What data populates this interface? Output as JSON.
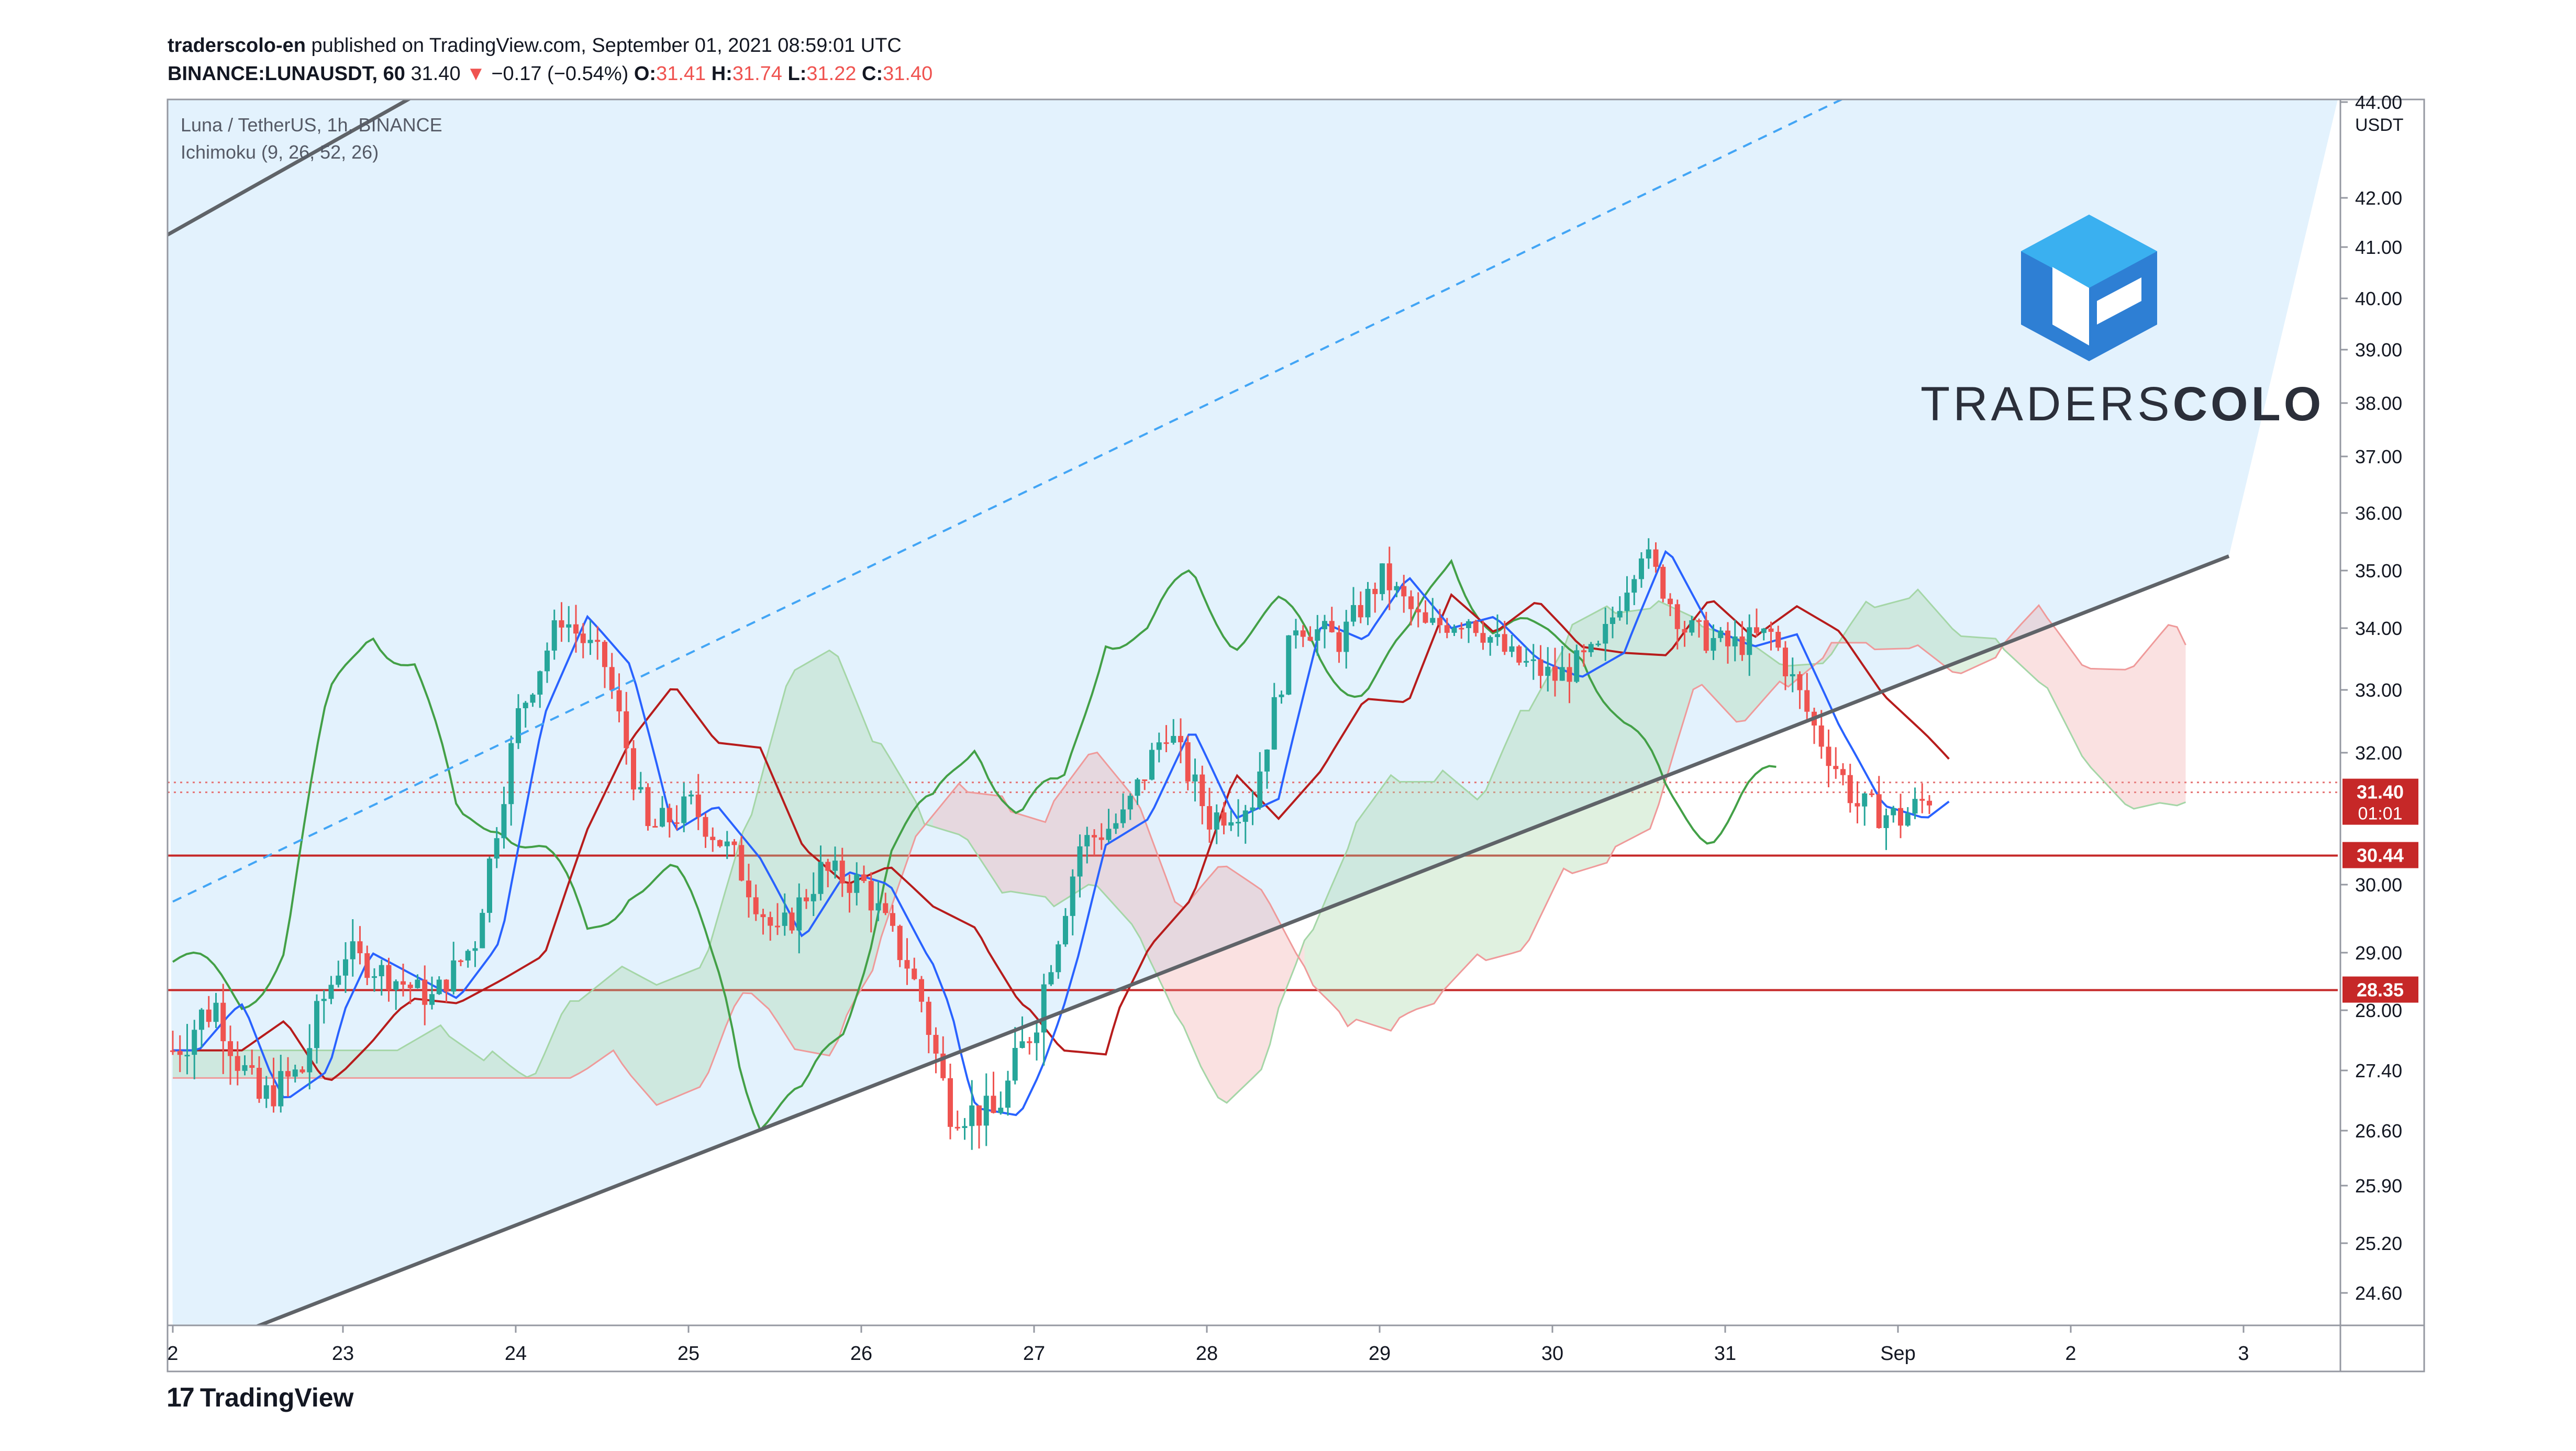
{
  "header": {
    "author": "traderscolo-en",
    "published_text": "published on TradingView.com, September 01, 2021 08:59:01 UTC",
    "symbol": "BINANCE:LUNAUSDT, 60",
    "last": "31.40",
    "change_arrow": "▼",
    "change": "−0.17 (−0.54%)",
    "o_label": "O:",
    "o_value": "31.41",
    "h_label": "H:",
    "h_value": "31.74",
    "l_label": "L:",
    "l_value": "31.22",
    "c_label": "C:",
    "c_value": "31.40"
  },
  "legend": {
    "series_title": "Luna / TetherUS, 1h, BINANCE",
    "indicator": "Ichimoku (9, 26, 52, 26)"
  },
  "brand": {
    "text_light": "TRADERS",
    "text_bold": "COLO"
  },
  "footer": {
    "logo_text": "TradingView",
    "logo_mark": "17"
  },
  "chart_data": {
    "type": "candlestick",
    "currency_label": "USDT",
    "x_ticks": [
      "2",
      "23",
      "24",
      "25",
      "26",
      "27",
      "28",
      "29",
      "30",
      "31",
      "Sep",
      "2",
      "3"
    ],
    "y_ticks": [
      "44.00",
      "42.00",
      "41.00",
      "40.00",
      "39.00",
      "38.00",
      "37.00",
      "36.00",
      "35.00",
      "34.00",
      "33.00",
      "32.00",
      "30.00",
      "29.00",
      "28.00",
      "27.40",
      "26.60",
      "25.90",
      "25.20",
      "24.60"
    ],
    "y_tick_values": [
      44.0,
      42.0,
      41.0,
      40.0,
      39.0,
      38.0,
      37.0,
      36.0,
      35.0,
      34.0,
      33.0,
      32.0,
      30.0,
      29.0,
      28.0,
      27.4,
      26.6,
      25.9,
      25.2,
      24.6
    ],
    "price_labels": [
      {
        "text": "31.40",
        "sub": "01:01",
        "value": 31.4,
        "color": "#c62828"
      },
      {
        "text": "30.44",
        "value": 30.44,
        "color": "#c62828"
      },
      {
        "text": "28.35",
        "value": 28.35,
        "color": "#c62828"
      }
    ],
    "horizontal_levels": [
      30.44,
      28.35
    ],
    "dotted_levels": [
      31.55,
      31.4
    ],
    "channel": {
      "lower": [
        [
          0.0,
          23.8
        ],
        [
          11.9,
          35.25
        ]
      ],
      "upper": [
        [
          0.0,
          41.25
        ],
        [
          0.5,
          45.2
        ]
      ],
      "mid_dashed": [
        [
          0.0,
          29.75
        ],
        [
          9.8,
          44.3
        ]
      ]
    },
    "candles_sample": {
      "days": [
        0.0,
        0.25,
        0.5,
        0.75,
        1.0,
        1.25,
        1.5,
        1.75,
        2.0,
        2.25,
        2.5,
        2.75,
        3.0,
        3.25,
        3.5,
        3.75,
        4.0,
        4.25,
        4.5,
        4.75,
        5.0,
        5.25,
        5.5,
        5.75,
        6.0,
        6.25,
        6.5,
        6.75,
        7.0,
        7.25,
        7.5,
        7.75,
        8.0,
        8.25,
        8.5,
        8.75,
        9.0,
        9.25,
        9.5,
        9.75,
        10.0,
        10.2
      ],
      "close": [
        27.6,
        28.1,
        27.0,
        27.4,
        29.0,
        28.6,
        28.2,
        29.2,
        32.6,
        34.2,
        33.4,
        30.8,
        31.2,
        30.4,
        29.2,
        30.2,
        30.0,
        28.8,
        26.9,
        26.8,
        28.0,
        30.6,
        31.0,
        32.4,
        31.0,
        31.3,
        34.1,
        33.8,
        34.9,
        34.0,
        34.2,
        33.5,
        33.2,
        33.6,
        35.4,
        34.0,
        33.7,
        33.9,
        32.4,
        31.2,
        31.0,
        31.4
      ]
    }
  }
}
